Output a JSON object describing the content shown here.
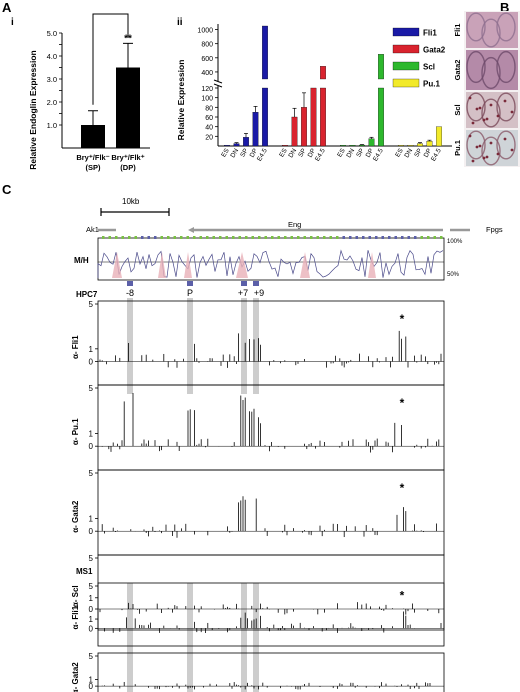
{
  "panel_labels": {
    "A": "A",
    "A_i": "i",
    "A_ii": "ii",
    "B": "B",
    "C": "C"
  },
  "colors": {
    "fli1": "#1a1aa6",
    "gata2": "#d9232e",
    "scl": "#2db82d",
    "pu1": "#f2ea2a",
    "highlight": "#c8c8c8",
    "conservation_green": "#7ac143",
    "conservation_blue": "#5b5fa8"
  },
  "chart_data": [
    {
      "id": "A_i",
      "type": "bar",
      "ylabel": "Relative Endoglin Expression",
      "categories": [
        "Bry+/Flk- (SP)",
        "Bry+/Flk+ (DP)"
      ],
      "category_lines": [
        [
          "Bry⁺/Flk⁻",
          "(SP)"
        ],
        [
          "Bry⁺/Flk⁺",
          "(DP)"
        ]
      ],
      "values": [
        1.0,
        3.5
      ],
      "errors": [
        0.62,
        1.05
      ],
      "ylim": [
        0,
        5.0
      ],
      "yticks": [
        "1.0",
        "1.5",
        "2.0",
        "2.5",
        "3.0",
        "3.5",
        "4.0",
        "4.5",
        "5.0"
      ],
      "yticks_shown": [
        "1.0",
        "2.0",
        "3.0",
        "4.0",
        "5.0"
      ],
      "significance": "**"
    },
    {
      "id": "A_ii",
      "type": "bar",
      "ylabel": "Relative Expression",
      "stages": [
        "ES",
        "DN",
        "SP",
        "DP",
        "E4.5"
      ],
      "broken_axis": true,
      "yticks": [
        "20",
        "40",
        "60",
        "80",
        "100",
        "120",
        "400",
        "600",
        "800",
        "1000"
      ],
      "series": [
        {
          "name": "Fli1",
          "values": [
            1,
            5,
            18,
            70,
            1050
          ],
          "errors": [
            0,
            2,
            8,
            12,
            0
          ]
        },
        {
          "name": "Gata2",
          "values": [
            1,
            60,
            80,
            120,
            480
          ],
          "errors": [
            0,
            18,
            30,
            0,
            0
          ]
        },
        {
          "name": "Scl",
          "values": [
            1,
            1,
            2,
            15,
            650
          ],
          "errors": [
            0,
            0,
            1,
            3,
            0
          ]
        },
        {
          "name": "Pu.1",
          "values": [
            1,
            1,
            5,
            10,
            40
          ],
          "errors": [
            0,
            0,
            2,
            2,
            0
          ]
        }
      ]
    },
    {
      "id": "C",
      "type": "bar",
      "scale_label": "10kb",
      "genes": [
        "Ak1",
        "Eng",
        "Fpgs"
      ],
      "conservation_label": "M/H",
      "conservation_ticks": [
        "100%",
        "50%"
      ],
      "elements": [
        "-8",
        "P",
        "+7",
        "+9"
      ],
      "cell_lines": [
        "HPC7",
        "MS1"
      ],
      "tracks": [
        {
          "name": "α- Fli1",
          "cell": "HPC7",
          "yticks": [
            "0",
            "1",
            "5"
          ],
          "star": "*"
        },
        {
          "name": "α- Pu.1",
          "cell": "HPC7",
          "yticks": [
            "0",
            "1",
            "5"
          ],
          "star": "*"
        },
        {
          "name": "α- Gata2",
          "cell": "HPC7",
          "yticks": [
            "0",
            "1",
            "5"
          ],
          "star": "*"
        },
        {
          "name": "α- Scl",
          "cell": "HPC7",
          "yticks": [
            "0",
            "1",
            "5"
          ],
          "star": ""
        },
        {
          "name": "α- Fli1",
          "cell": "MS1",
          "yticks": [
            "0",
            "1",
            "5"
          ],
          "star": "*"
        },
        {
          "name": "α- Gata2",
          "cell": "MS1",
          "yticks": [
            "0",
            "1",
            "5"
          ],
          "star": ""
        }
      ]
    }
  ],
  "panel_b": {
    "labels": [
      "Fli1",
      "Gata2",
      "Scl",
      "Pu.1"
    ]
  }
}
